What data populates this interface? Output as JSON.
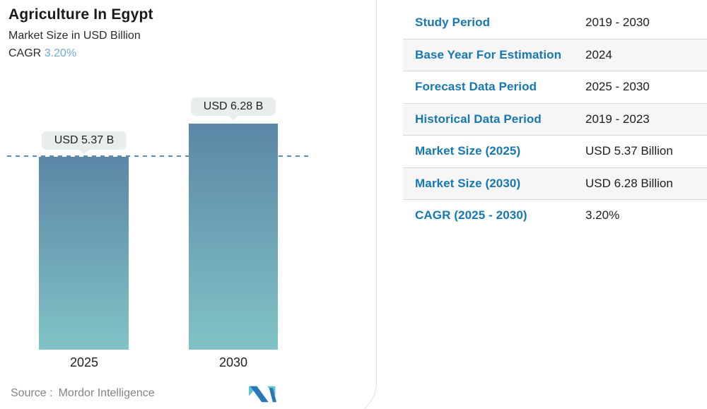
{
  "header": {
    "title": "Agriculture In Egypt",
    "subtitle": "Market Size in USD Billion",
    "cagr_label": "CAGR",
    "cagr_value": "3.20%"
  },
  "chart_data": {
    "type": "bar",
    "title": "Agriculture In Egypt",
    "subtitle": "Market Size in USD Billion",
    "unit": "USD Billion",
    "categories": [
      "2025",
      "2030"
    ],
    "values": [
      5.37,
      6.28
    ],
    "bar_labels": [
      "USD 5.37 B",
      "USD 6.28 B"
    ],
    "cagr_percent": "3.20%",
    "ylim": [
      0,
      6.28
    ],
    "reference_line_value": 5.37,
    "grid": false,
    "legend": false,
    "colors": {
      "bar_gradient_top": "#5b87a6",
      "bar_gradient_bottom": "#81c3c6",
      "reference_line": "#5e8cb8",
      "bubble_background": "#e8eeee",
      "cagr_accent": "#74a9d4",
      "label_blue": "#1578b3"
    }
  },
  "source": {
    "label": "Source :",
    "name": "Mordor Intelligence",
    "logo": "mordor-intelligence-mark"
  },
  "table": {
    "rows": [
      {
        "label": "Study Period",
        "value": "2019 - 2030"
      },
      {
        "label": "Base Year For Estimation",
        "value": "2024"
      },
      {
        "label": "Forecast Data Period",
        "value": "2025 - 2030"
      },
      {
        "label": "Historical Data Period",
        "value": "2019 - 2023"
      },
      {
        "label": "Market Size (2025)",
        "value": "USD 5.37 Billion"
      },
      {
        "label": "Market Size (2030)",
        "value": "USD 6.28 Billion"
      },
      {
        "label": "CAGR (2025 - 2030)",
        "value": "3.20%"
      }
    ]
  }
}
